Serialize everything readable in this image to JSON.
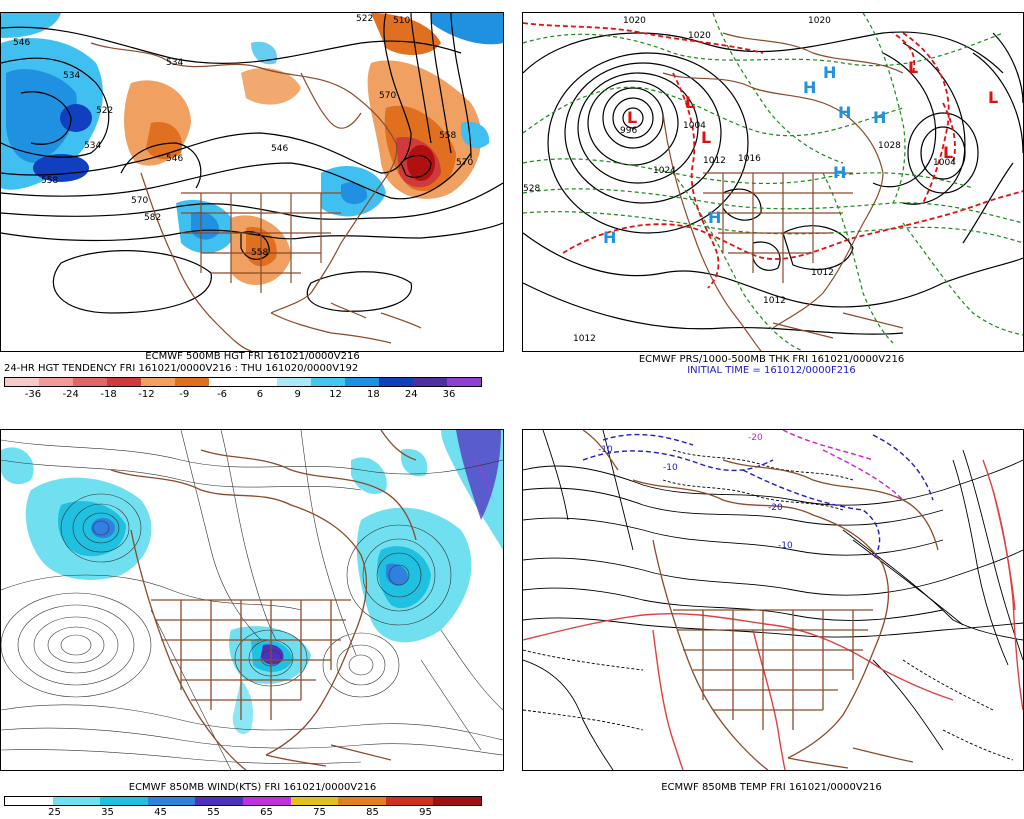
{
  "panels": {
    "p1": {
      "caption1": "ECMWF 500MB HGT FRI 161021/0000V216",
      "caption2": "24-HR HGT TENDENCY FRI 161021/0000V216 : THU 161020/0000V192",
      "contour_labels": [
        "546",
        "534",
        "522",
        "534",
        "546",
        "558",
        "570",
        "582",
        "558",
        "534",
        "546",
        "570",
        "558",
        "522",
        "510",
        "570"
      ],
      "colorbar": {
        "colors": [
          "#f9c8c8",
          "#f39b9b",
          "#e06565",
          "#d03a3a",
          "#f0a060",
          "#e07020",
          "#ffffff",
          "#ffffff",
          "#a8e8f8",
          "#40c8f0",
          "#2090e0",
          "#1040c0",
          "#5030a0",
          "#9040d0"
        ],
        "ticks": [
          "-36",
          "-24",
          "-18",
          "-12",
          "-9",
          "-6",
          "6",
          "9",
          "12",
          "18",
          "24",
          "36"
        ]
      }
    },
    "p2": {
      "caption1": "ECMWF PRS/1000-500MB THK FRI 161021/0000V216",
      "caption2": "INITIAL TIME = 161012/0000F216",
      "contour_labels": [
        "1020",
        "1020",
        "1020",
        "1012",
        "1028",
        "1004",
        "1016",
        "1024",
        "1012",
        "1012",
        "1012",
        "1004",
        "996",
        "528"
      ],
      "highs": [
        "H",
        "H",
        "H",
        "H",
        "H",
        "H",
        "H"
      ],
      "lows": [
        "L",
        "L",
        "L",
        "L",
        "L",
        "L"
      ]
    },
    "p3": {
      "caption1": "ECMWF 850MB WIND(KTS) FRI 161021/0000V216",
      "colorbar": {
        "colors": [
          "#ffffff",
          "#70e0f0",
          "#20c0e0",
          "#3080e0",
          "#5030c0",
          "#c030e0",
          "#e0c020",
          "#e08020",
          "#d03020",
          "#a01010"
        ],
        "ticks": [
          "25",
          "35",
          "45",
          "55",
          "65",
          "75",
          "85",
          "95"
        ]
      }
    },
    "p4": {
      "caption1": "ECMWF 850MB TEMP FRI 161021/0000V216",
      "contour_labels": [
        "-10",
        "-10",
        "-20",
        "-10",
        "-20"
      ]
    }
  },
  "colors": {
    "coast": "#8b4a2b",
    "contour": "#000000",
    "dashed_green": "#1a8a1a",
    "dashed_red": "#e01010",
    "temp_blue": "#1a1ad0",
    "temp_magenta": "#d020d0",
    "temp_red": "#e04040"
  }
}
